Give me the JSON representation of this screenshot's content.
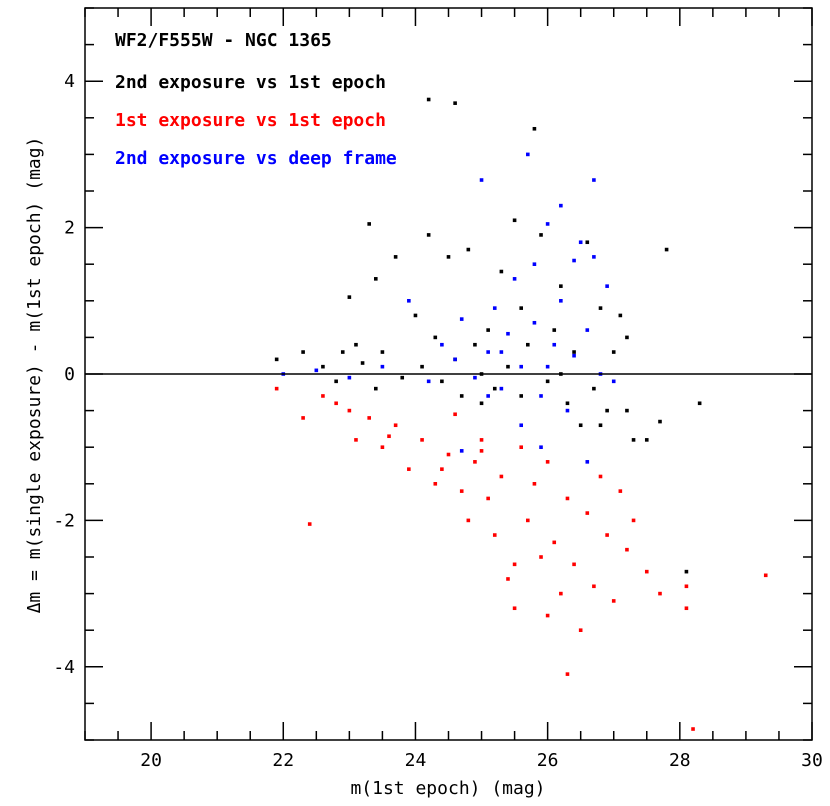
{
  "chart_data": {
    "type": "scatter",
    "title": "WF2/F555W - NGC 1365",
    "xlabel": "m(1st epoch) (mag)",
    "ylabel": "Δm = m(single exposure) - m(1st epoch) (mag)",
    "xlim": [
      19,
      30
    ],
    "ylim": [
      -5,
      5
    ],
    "xticks": [
      20,
      22,
      24,
      26,
      28,
      30
    ],
    "yticks": [
      -4,
      -2,
      0,
      2,
      4
    ],
    "reference_line_y": 0,
    "grid": false,
    "legend_position": "top-left",
    "series": [
      {
        "name": "2nd exposure vs 1st epoch",
        "color": "#000000",
        "points": [
          [
            21.9,
            0.2
          ],
          [
            22.3,
            0.3
          ],
          [
            22.6,
            0.1
          ],
          [
            22.8,
            -0.1
          ],
          [
            22.9,
            0.3
          ],
          [
            23.0,
            1.05
          ],
          [
            23.1,
            0.4
          ],
          [
            23.2,
            0.15
          ],
          [
            23.3,
            2.05
          ],
          [
            23.4,
            -0.2
          ],
          [
            23.5,
            0.3
          ],
          [
            23.7,
            1.6
          ],
          [
            23.8,
            -0.05
          ],
          [
            24.0,
            0.8
          ],
          [
            24.1,
            0.1
          ],
          [
            24.2,
            1.9
          ],
          [
            24.3,
            0.5
          ],
          [
            24.4,
            -0.1
          ],
          [
            24.5,
            1.6
          ],
          [
            24.6,
            0.2
          ],
          [
            24.7,
            -0.3
          ],
          [
            24.8,
            1.7
          ],
          [
            24.9,
            0.4
          ],
          [
            25.0,
            0.0
          ],
          [
            25.1,
            0.6
          ],
          [
            25.2,
            -0.2
          ],
          [
            25.3,
            1.4
          ],
          [
            25.4,
            0.1
          ],
          [
            25.5,
            2.1
          ],
          [
            25.6,
            -0.3
          ],
          [
            25.7,
            0.4
          ],
          [
            25.8,
            3.35
          ],
          [
            25.9,
            1.9
          ],
          [
            26.0,
            -0.1
          ],
          [
            26.1,
            0.6
          ],
          [
            26.2,
            1.2
          ],
          [
            26.3,
            -0.4
          ],
          [
            26.4,
            0.3
          ],
          [
            26.5,
            -0.7
          ],
          [
            26.6,
            1.8
          ],
          [
            26.7,
            -0.2
          ],
          [
            26.8,
            0.9
          ],
          [
            26.9,
            -0.5
          ],
          [
            27.0,
            0.3
          ],
          [
            27.1,
            0.8
          ],
          [
            27.2,
            0.5
          ],
          [
            27.3,
            -0.9
          ],
          [
            27.5,
            -0.9
          ],
          [
            27.7,
            -0.65
          ],
          [
            27.8,
            1.7
          ],
          [
            28.1,
            -2.7
          ],
          [
            28.3,
            -0.4
          ],
          [
            25.6,
            0.9
          ],
          [
            26.2,
            0.0
          ],
          [
            26.8,
            -0.7
          ],
          [
            24.6,
            3.7
          ],
          [
            24.2,
            3.75
          ],
          [
            23.4,
            1.3
          ],
          [
            25.0,
            -0.4
          ],
          [
            27.2,
            -0.5
          ]
        ]
      },
      {
        "name": "1st exposure vs 1st epoch",
        "color": "#ff0000",
        "points": [
          [
            21.9,
            -0.2
          ],
          [
            22.3,
            -0.6
          ],
          [
            22.4,
            -2.05
          ],
          [
            22.6,
            -0.3
          ],
          [
            22.8,
            -0.4
          ],
          [
            23.0,
            -0.5
          ],
          [
            23.1,
            -0.9
          ],
          [
            23.3,
            -0.6
          ],
          [
            23.5,
            -1.0
          ],
          [
            23.7,
            -0.7
          ],
          [
            23.9,
            -1.3
          ],
          [
            24.1,
            -0.9
          ],
          [
            24.3,
            -1.5
          ],
          [
            24.5,
            -1.1
          ],
          [
            24.6,
            -0.55
          ],
          [
            24.7,
            -1.6
          ],
          [
            24.8,
            -2.0
          ],
          [
            24.9,
            -1.2
          ],
          [
            25.0,
            -0.9
          ],
          [
            25.1,
            -1.7
          ],
          [
            25.2,
            -2.2
          ],
          [
            25.3,
            -1.4
          ],
          [
            25.4,
            -2.8
          ],
          [
            25.5,
            -3.2
          ],
          [
            25.6,
            -1.0
          ],
          [
            25.7,
            -2.0
          ],
          [
            25.8,
            -1.5
          ],
          [
            25.9,
            -2.5
          ],
          [
            26.0,
            -1.2
          ],
          [
            26.1,
            -2.3
          ],
          [
            26.2,
            -3.0
          ],
          [
            26.3,
            -1.7
          ],
          [
            26.4,
            -2.6
          ],
          [
            26.5,
            -3.5
          ],
          [
            26.6,
            -1.9
          ],
          [
            26.7,
            -2.9
          ],
          [
            26.8,
            -1.4
          ],
          [
            26.9,
            -2.2
          ],
          [
            27.0,
            -3.1
          ],
          [
            27.1,
            -1.6
          ],
          [
            27.2,
            -2.4
          ],
          [
            27.3,
            -2.0
          ],
          [
            27.5,
            -2.7
          ],
          [
            27.7,
            -3.0
          ],
          [
            28.1,
            -2.9
          ],
          [
            28.1,
            -3.2
          ],
          [
            28.2,
            -4.85
          ],
          [
            29.3,
            -2.75
          ],
          [
            26.3,
            -4.1
          ],
          [
            25.0,
            -1.05
          ],
          [
            24.4,
            -1.3
          ],
          [
            23.6,
            -0.85
          ],
          [
            26.0,
            -3.3
          ],
          [
            25.5,
            -2.6
          ]
        ]
      },
      {
        "name": "2nd exposure vs deep frame",
        "color": "#0000ff",
        "points": [
          [
            22.0,
            0.0
          ],
          [
            22.5,
            0.05
          ],
          [
            23.0,
            -0.05
          ],
          [
            23.5,
            0.1
          ],
          [
            23.9,
            1.0
          ],
          [
            24.2,
            -0.1
          ],
          [
            24.4,
            0.4
          ],
          [
            24.6,
            0.2
          ],
          [
            24.7,
            0.75
          ],
          [
            24.9,
            -0.05
          ],
          [
            25.0,
            2.65
          ],
          [
            25.1,
            0.3
          ],
          [
            25.2,
            0.9
          ],
          [
            25.3,
            -0.2
          ],
          [
            25.4,
            0.55
          ],
          [
            25.5,
            1.3
          ],
          [
            25.6,
            0.1
          ],
          [
            25.7,
            3.0
          ],
          [
            25.8,
            0.7
          ],
          [
            25.9,
            -0.3
          ],
          [
            26.0,
            2.05
          ],
          [
            26.1,
            0.4
          ],
          [
            26.2,
            1.0
          ],
          [
            26.3,
            -0.5
          ],
          [
            26.4,
            0.25
          ],
          [
            26.5,
            1.8
          ],
          [
            26.6,
            0.6
          ],
          [
            26.7,
            2.65
          ],
          [
            26.8,
            0.0
          ],
          [
            26.9,
            1.2
          ],
          [
            27.0,
            -0.1
          ],
          [
            25.8,
            1.5
          ],
          [
            26.2,
            2.3
          ],
          [
            25.6,
            -0.7
          ],
          [
            25.9,
            -1.0
          ],
          [
            26.6,
            -1.2
          ],
          [
            24.7,
            -1.05
          ],
          [
            25.3,
            0.3
          ],
          [
            26.4,
            1.55
          ],
          [
            25.1,
            -0.3
          ],
          [
            26.7,
            1.6
          ],
          [
            26.0,
            0.1
          ]
        ]
      }
    ]
  }
}
